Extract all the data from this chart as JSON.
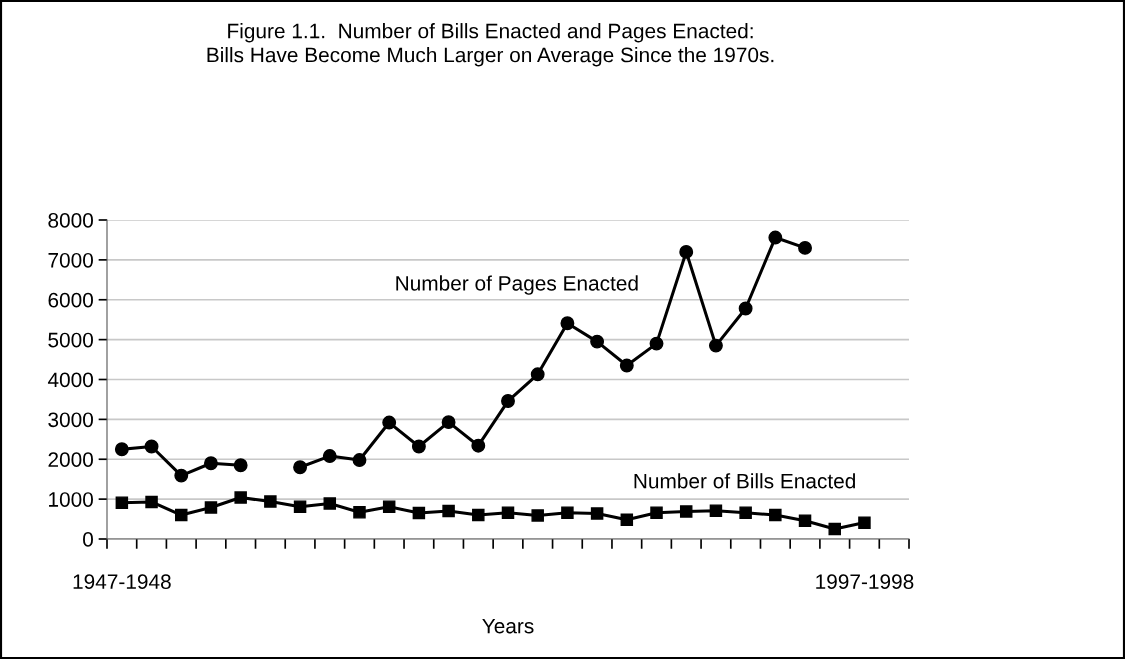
{
  "chart_data": {
    "type": "line",
    "title": "Figure 1.1.  Number of Bills Enacted and Pages Enacted:\nBills Have Become Much Larger on Average Since the 1970s.",
    "xlabel": "Years",
    "categories": [
      "1947-1948",
      null,
      null,
      null,
      null,
      null,
      null,
      null,
      null,
      null,
      null,
      null,
      null,
      null,
      null,
      null,
      null,
      null,
      null,
      null,
      null,
      null,
      null,
      null,
      null,
      "1997-1998",
      null
    ],
    "series": [
      {
        "name": "Number of Pages Enacted",
        "color": "#000000",
        "marker": "circle",
        "values": [
          2250,
          2320,
          1590,
          1900,
          1850,
          null,
          1800,
          2080,
          1980,
          2920,
          2320,
          2930,
          2340,
          3460,
          4130,
          5410,
          4950,
          4350,
          4900,
          7200,
          4850,
          5780,
          7560,
          7300,
          null,
          null,
          null
        ]
      },
      {
        "name": "Number of Bills Enacted",
        "color": "#000000",
        "marker": "square",
        "values": [
          910,
          930,
          600,
          790,
          1040,
          940,
          810,
          890,
          670,
          810,
          650,
          700,
          600,
          660,
          590,
          660,
          640,
          480,
          660,
          690,
          710,
          660,
          600,
          460,
          250,
          410,
          null
        ]
      }
    ],
    "ylim": [
      0,
      8000
    ],
    "yticks": [
      0,
      1000,
      2000,
      3000,
      4000,
      5000,
      6000,
      7000,
      8000
    ],
    "grid": "y",
    "legend": false,
    "line_style": "solid"
  }
}
